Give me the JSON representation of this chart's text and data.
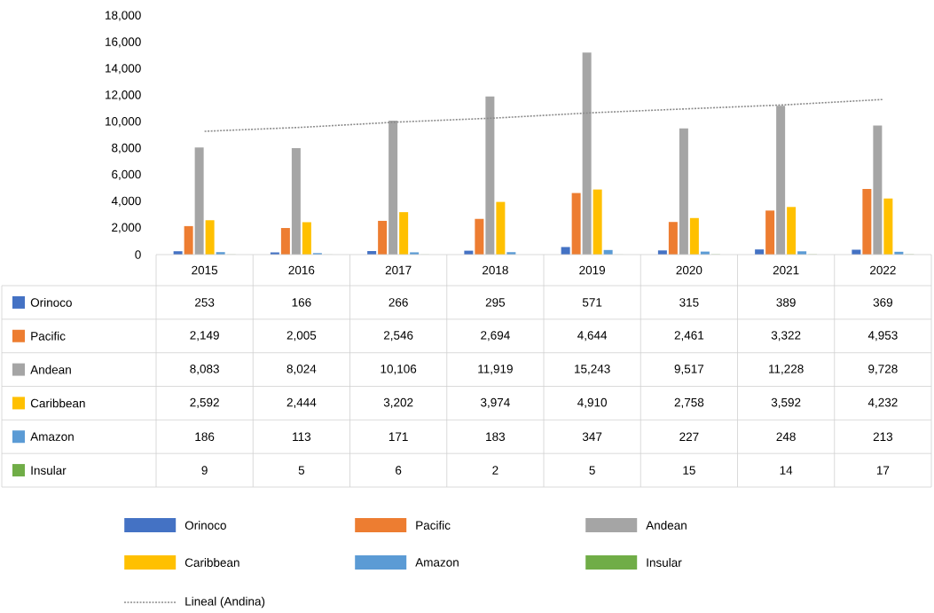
{
  "chart_data": {
    "type": "bar",
    "categories": [
      "2015",
      "2016",
      "2017",
      "2018",
      "2019",
      "2020",
      "2021",
      "2022"
    ],
    "series": [
      {
        "name": "Orinoco",
        "color": "#4472c4",
        "values": [
          253,
          166,
          266,
          295,
          571,
          315,
          389,
          369
        ],
        "value_labels": [
          "253",
          "166",
          "266",
          "295",
          "571",
          "315",
          "389",
          "369"
        ]
      },
      {
        "name": "Pacific",
        "color": "#ed7d31",
        "values": [
          2149,
          2005,
          2546,
          2694,
          4644,
          2461,
          3322,
          4953
        ],
        "value_labels": [
          "2,149",
          "2,005",
          "2,546",
          "2,694",
          "4,644",
          "2,461",
          "3,322",
          "4,953"
        ]
      },
      {
        "name": "Andean",
        "color": "#a5a5a5",
        "values": [
          8083,
          8024,
          10106,
          11919,
          15243,
          9517,
          11228,
          9728
        ],
        "value_labels": [
          "8,083",
          "8,024",
          "10,106",
          "11,919",
          "15,243",
          "9,517",
          "11,228",
          "9,728"
        ]
      },
      {
        "name": "Caribbean",
        "color": "#ffc000",
        "values": [
          2592,
          2444,
          3202,
          3974,
          4910,
          2758,
          3592,
          4232
        ],
        "value_labels": [
          "2,592",
          "2,444",
          "3,202",
          "3,974",
          "4,910",
          "2,758",
          "3,592",
          "4,232"
        ]
      },
      {
        "name": "Amazon",
        "color": "#5b9bd5",
        "values": [
          186,
          113,
          171,
          183,
          347,
          227,
          248,
          213
        ],
        "value_labels": [
          "186",
          "113",
          "171",
          "183",
          "347",
          "227",
          "248",
          "213"
        ]
      },
      {
        "name": "Insular",
        "color": "#70ad47",
        "values": [
          9,
          5,
          6,
          2,
          5,
          15,
          14,
          17
        ],
        "value_labels": [
          "9",
          "5",
          "6",
          "2",
          "5",
          "15",
          "14",
          "17"
        ]
      },
      {
        "name": "Lineal (Andina)",
        "type": "line",
        "color": "#8c8c8c",
        "line_style": "dotted",
        "marker": "none",
        "values": [
          9300,
          9600,
          10000,
          10300,
          10700,
          11000,
          11300,
          11700
        ]
      }
    ],
    "ylim": [
      0,
      18000
    ],
    "yticks": [
      0,
      {
        "value": 2000,
        "label": "2,000"
      },
      {
        "value": 4000,
        "label": "4,000"
      },
      {
        "value": 6000,
        "label": "6,000"
      },
      {
        "value": 8000,
        "label": "8,000"
      },
      {
        "value": 10000,
        "label": "10,000"
      },
      {
        "value": 12000,
        "label": "12,000"
      },
      {
        "value": 14000,
        "label": "14,000"
      },
      {
        "value": 16000,
        "label": "16,000"
      },
      {
        "value": 18000,
        "label": "18,000"
      }
    ],
    "legend": "bottom"
  }
}
